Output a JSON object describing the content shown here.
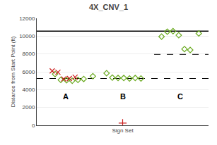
{
  "chart_data": {
    "type": "scatter",
    "title": "4X_CNV_1",
    "x_label": "Sign Set",
    "y_label": "Distance from Start Point (ft)",
    "xlim": [
      0.5,
      3.5
    ],
    "ylim": [
      0,
      12000
    ],
    "yticks": [
      0,
      2000,
      4000,
      6000,
      8000,
      10000,
      12000
    ],
    "grid": "y",
    "tick_labels": "y",
    "series": [
      {
        "color": "#6aaa20",
        "marker": "diamond",
        "x": [
          0.82,
          0.92,
          1.02,
          1.12,
          1.22,
          1.32,
          1.48
        ],
        "values": [
          5750,
          5100,
          5050,
          5000,
          5100,
          5200,
          5500
        ]
      },
      {
        "color": "#cc2020",
        "marker": "x",
        "x": [
          0.77,
          0.87,
          0.97,
          1.07,
          1.17
        ],
        "values": [
          6100,
          5950,
          5200,
          5250,
          5400
        ]
      },
      {
        "color": "#6aaa20",
        "marker": "diamond",
        "x": [
          1.72,
          1.82,
          1.92,
          2.02,
          2.12,
          2.22,
          2.32
        ],
        "values": [
          5850,
          5350,
          5300,
          5300,
          5250,
          5300,
          5250
        ]
      },
      {
        "color": "#cc2020",
        "marker": "plus",
        "x": [
          2.0
        ],
        "values": [
          250
        ]
      },
      {
        "color": "#6aaa20",
        "marker": "diamond",
        "x": [
          2.68,
          2.78,
          2.88,
          2.98,
          3.08,
          3.18,
          3.33
        ],
        "values": [
          9950,
          10500,
          10550,
          10100,
          8550,
          8450,
          10300
        ]
      }
    ],
    "lines": [
      {
        "y": 10550,
        "color": "#000000",
        "line_style": "solid"
      },
      {
        "y": 5250,
        "color": "#000000",
        "line_style": "dashed"
      },
      {
        "y": 7950,
        "x": [
          2.55,
          3.5
        ],
        "color": "#000000",
        "line_style": "dashed"
      }
    ],
    "annotations": [
      {
        "text": "A",
        "x": 1.0,
        "y": 3200
      },
      {
        "text": "B",
        "x": 2.0,
        "y": 3200
      },
      {
        "text": "C",
        "x": 3.0,
        "y": 3200
      }
    ]
  }
}
